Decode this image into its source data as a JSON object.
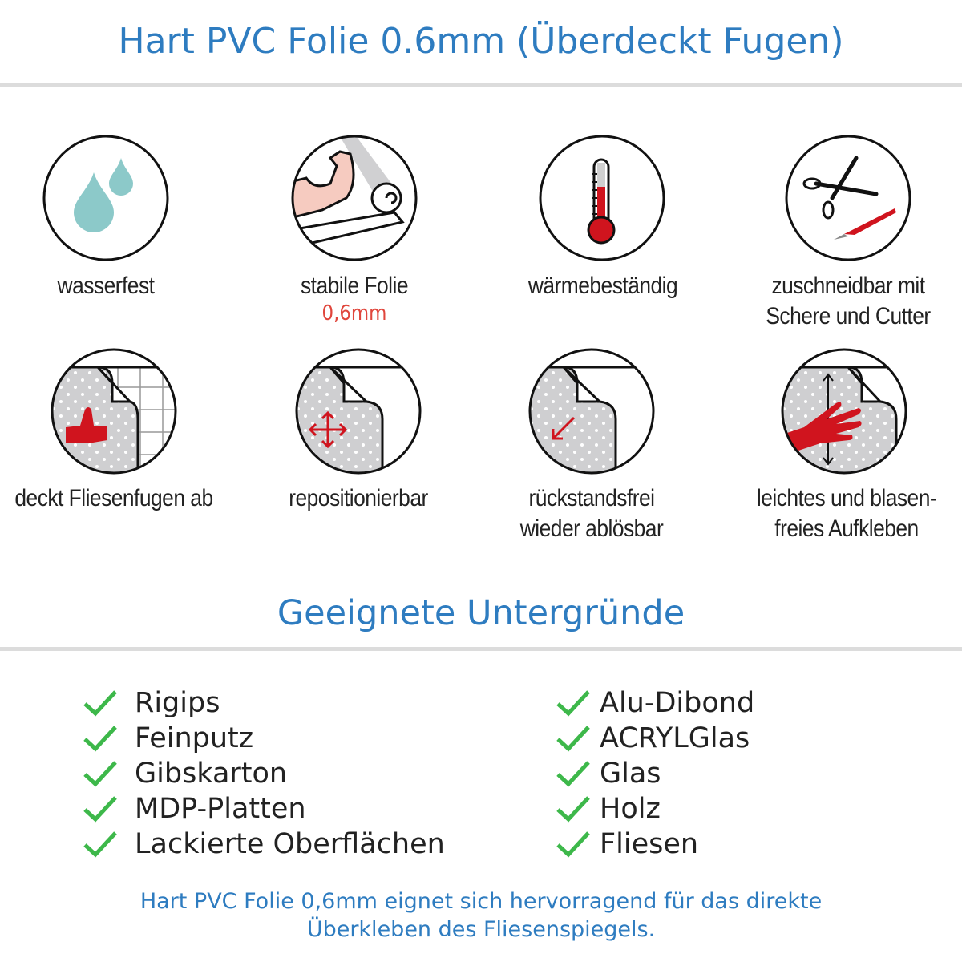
{
  "header": {
    "title": "Hart PVC Folie 0.6mm (Überdeckt Fugen)"
  },
  "features": [
    {
      "icon": "water-drops-icon",
      "label": "wasserfest"
    },
    {
      "icon": "strong-arm-icon",
      "label": "stabile Folie",
      "sub": "0,6mm"
    },
    {
      "icon": "thermometer-icon",
      "label": "wärmebeständig"
    },
    {
      "icon": "scissors-cutter-icon",
      "label": "zuschneidbar mit",
      "label2": "Schere und Cutter"
    },
    {
      "icon": "thumbs-up-tiles-icon",
      "label": "deckt Fliesenfugen ab"
    },
    {
      "icon": "move-arrows-icon",
      "label": "repositionierbar"
    },
    {
      "icon": "peel-arrow-icon",
      "label": "rückstandsfrei",
      "label2": "wieder ablösbar"
    },
    {
      "icon": "hand-smooth-icon",
      "label": "leichtes und blasen-",
      "label2": "freies Aufkleben"
    }
  ],
  "surfaces": {
    "title": "Geeignete Untergründe",
    "left": [
      "Rigips",
      "Feinputz",
      "Gibskarton",
      "MDP-Platten",
      "Lackierte Oberflächen"
    ],
    "right": [
      "Alu-Dibond",
      "ACRYLGlas",
      "Glas",
      "Holz",
      "Fliesen"
    ]
  },
  "footer": {
    "line1": "Hart PVC Folie 0,6mm eignet sich hervorragend für das direkte",
    "line2": "Überkleben des Fliesenspiegels."
  },
  "colors": {
    "title": "#2e7cc0",
    "check": "#3db84a",
    "accent_red": "#d0141e",
    "sub_red": "#e0463c"
  }
}
